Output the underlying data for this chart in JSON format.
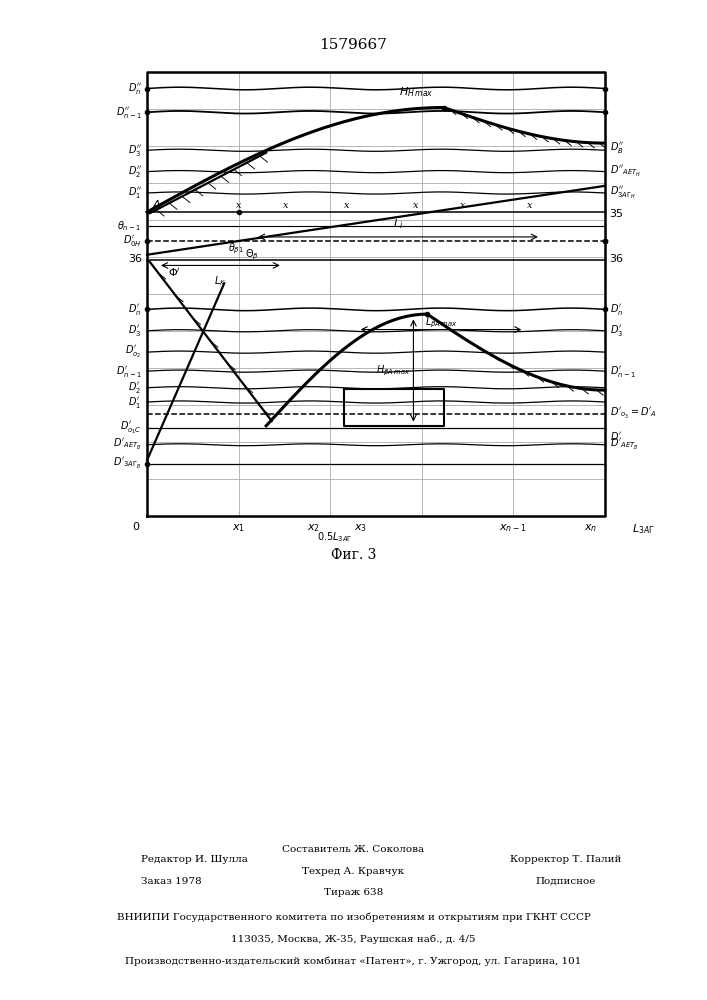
{
  "title": "1579667",
  "fig_caption": "Фиг. 3",
  "background": "#ffffff",
  "grid_color": "#aaaaaa",
  "line_color": "#000000",
  "fig_width": 7.07,
  "fig_height": 10.0,
  "dpi": 100,
  "footer_line1_left": "Редактор И. Шулла",
  "footer_line1_center": "Составитель Ж. Соколова",
  "footer_line2_left": "Заказ 1978",
  "footer_line2_center": "Техред А. Кравчук",
  "footer_line2_right": "Корректор Т. Палий",
  "footer_line3_center": "Тираж 638",
  "footer_line3_right": "Подписное",
  "footer_line4": "ВНИИПИ Государственного комитета по изобретениям и открытиям при ГКНТ СССР",
  "footer_line5": "113035, Москва, Ж-35, Раушская наб., д. 4/5",
  "footer_line6": "Производственно-издательский комбинат «Патент», г. Ужгород, ул. Гагарина, 101"
}
